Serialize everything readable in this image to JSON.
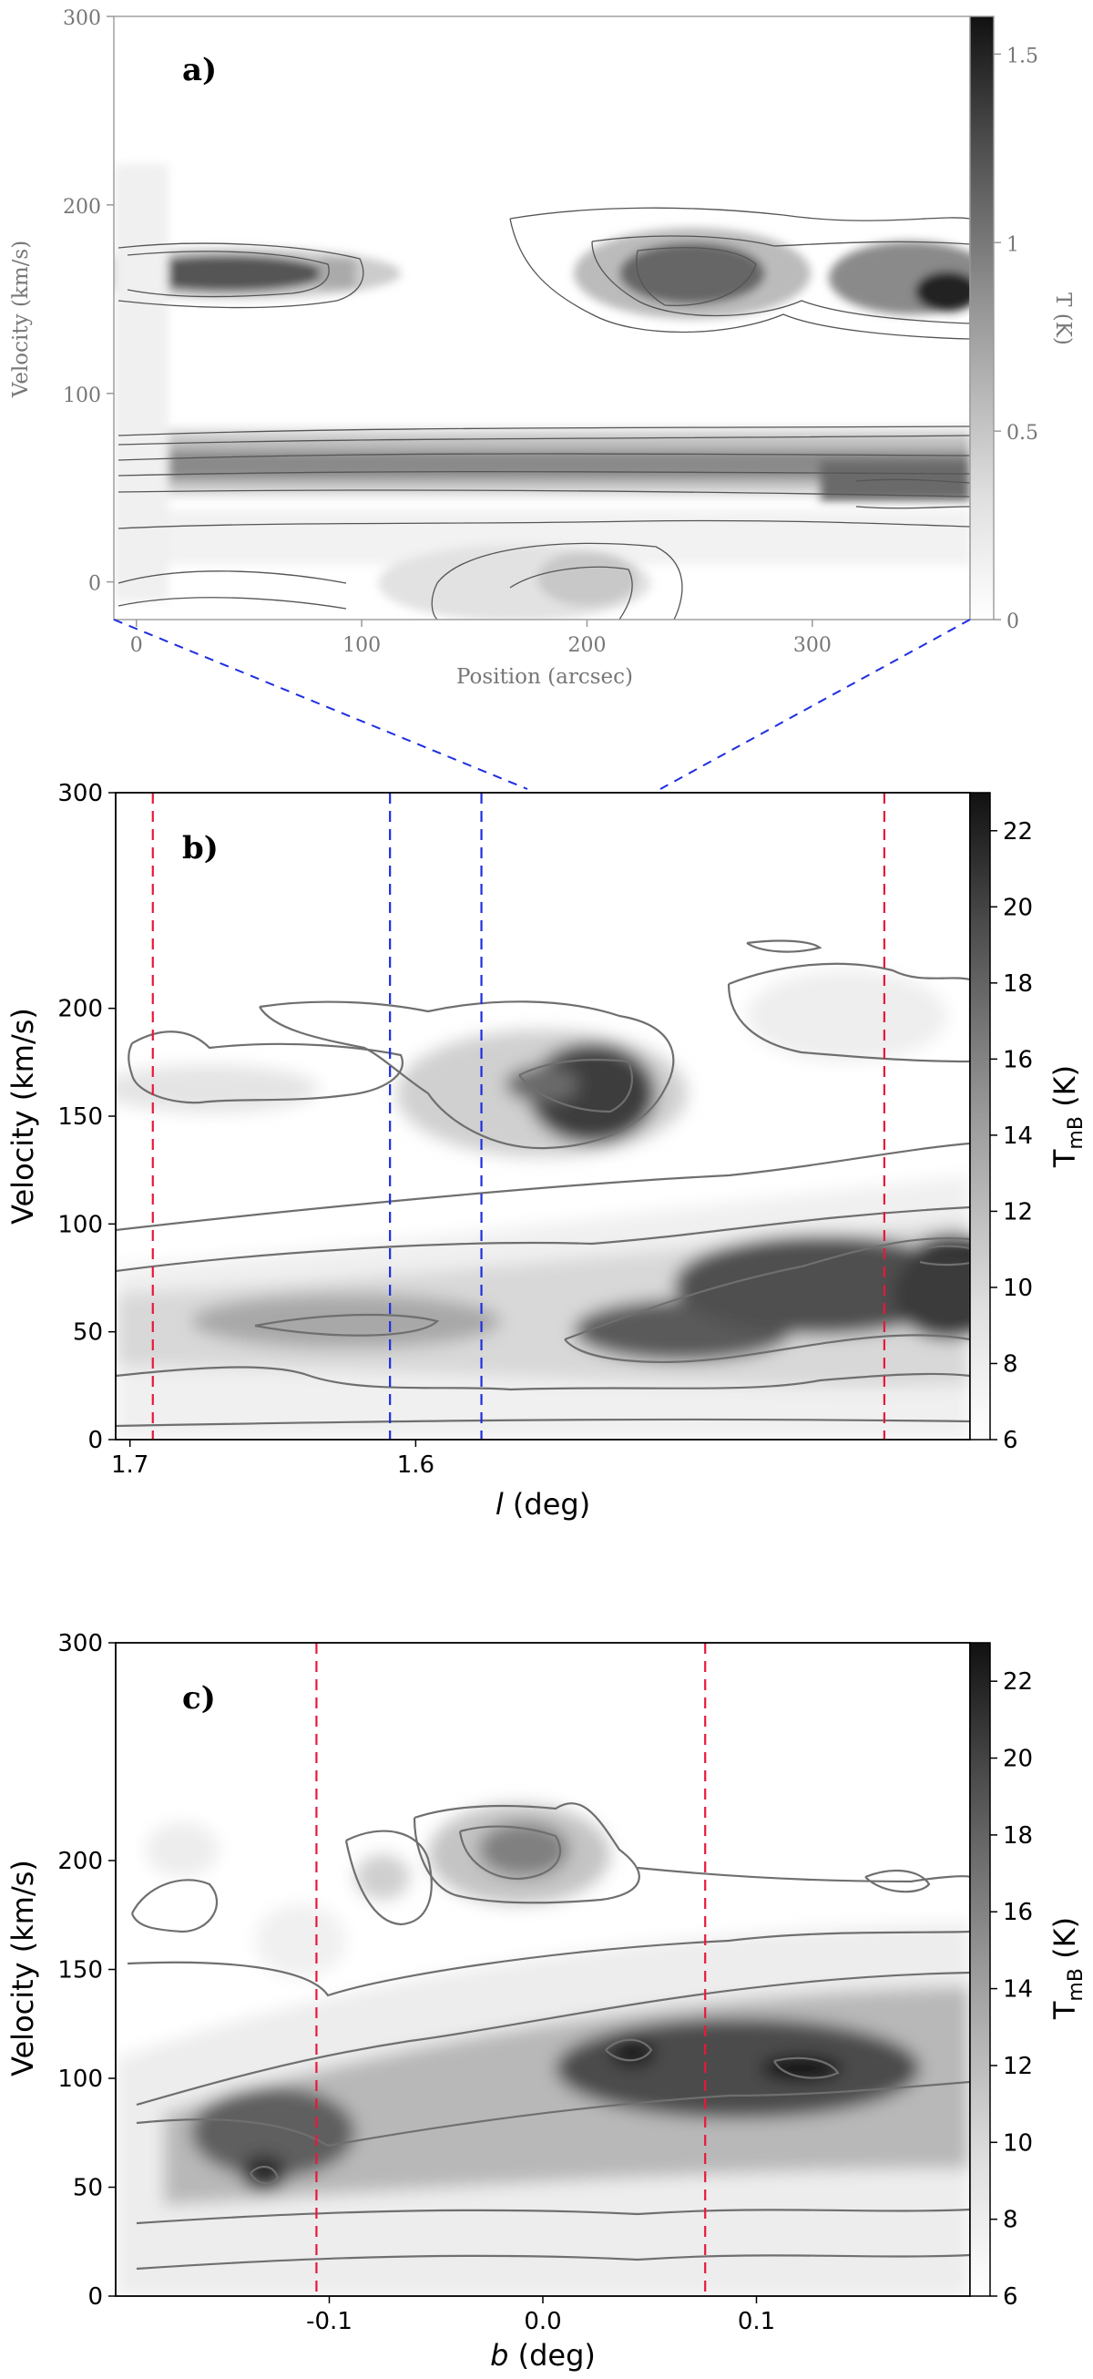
{
  "chart_data": [
    {
      "type": "heatmap",
      "panel_label": "a)",
      "xlabel": "Position (arcsec)",
      "ylabel": "Velocity (km/s)",
      "colorbar_label": "T (K)",
      "xlim": [
        -10,
        370
      ],
      "ylim": [
        -20,
        300
      ],
      "x_ticks": [
        0,
        100,
        200,
        300
      ],
      "y_ticks": [
        0,
        100,
        200,
        300
      ],
      "colorbar_range": [
        0,
        1.6
      ],
      "colorbar_ticks": [
        "0",
        "0.5",
        "1",
        "1.5"
      ],
      "features": [
        {
          "x_center": 45,
          "velocity": 160,
          "x_width": 55,
          "v_width": 20,
          "peak": 1.4
        },
        {
          "x_center": 245,
          "velocity": 160,
          "x_width": 50,
          "v_width": 30,
          "peak": 1.2
        },
        {
          "x_center": 350,
          "velocity": 155,
          "x_width": 40,
          "v_width": 25,
          "peak": 1.5
        },
        {
          "x_center": 180,
          "velocity": 55,
          "x_width": 250,
          "v_width": 12,
          "peak": 0.9
        },
        {
          "x_center": 210,
          "velocity": 10,
          "x_width": 60,
          "v_width": 20,
          "peak": 0.6
        }
      ]
    },
    {
      "type": "heatmap",
      "panel_label": "b)",
      "xlabel": "l (deg)",
      "ylabel": "Velocity (km/s)",
      "colorbar_label": "T_mB (K)",
      "xlim": [
        1.705,
        1.406
      ],
      "ylim": [
        0,
        300
      ],
      "x_ticks": [
        "1.7",
        "1.6"
      ],
      "y_ticks": [
        0,
        50,
        100,
        150,
        200,
        300
      ],
      "colorbar_range": [
        6,
        23
      ],
      "colorbar_ticks": [
        6,
        8,
        10,
        12,
        14,
        16,
        18,
        20,
        22
      ],
      "vertical_lines": [
        {
          "color": "#e8183a",
          "l": 1.692
        },
        {
          "color": "#1d2ee0",
          "l": 1.609
        },
        {
          "color": "#1d2ee0",
          "l": 1.577
        },
        {
          "color": "#e8183a",
          "l": 1.436
        }
      ],
      "features": [
        {
          "l": 1.58,
          "velocity": 150,
          "l_width": 0.012,
          "v_width": 18,
          "peak": 19
        },
        {
          "l": 1.605,
          "velocity": 165,
          "l_width": 0.012,
          "v_width": 15,
          "peak": 17
        },
        {
          "l": 1.43,
          "velocity": 88,
          "l_width": 0.03,
          "v_width": 14,
          "peak": 22
        },
        {
          "l": 1.5,
          "velocity": 70,
          "l_width": 0.08,
          "v_width": 20,
          "peak": 17
        },
        {
          "l": 1.58,
          "velocity": 45,
          "l_width": 0.04,
          "v_width": 12,
          "peak": 18
        }
      ]
    },
    {
      "type": "heatmap",
      "panel_label": "c)",
      "xlabel": "b (deg)",
      "ylabel": "Velocity (km/s)",
      "colorbar_label": "T_mB (K)",
      "xlim": [
        -0.2,
        0.2
      ],
      "ylim": [
        0,
        300
      ],
      "x_ticks": [
        "-0.1",
        "0.0",
        "0.1"
      ],
      "y_ticks": [
        0,
        50,
        100,
        150,
        200,
        300
      ],
      "colorbar_range": [
        6,
        23
      ],
      "colorbar_ticks": [
        6,
        8,
        10,
        12,
        14,
        16,
        18,
        20,
        22
      ],
      "vertical_lines": [
        {
          "color": "#e8183a",
          "b": -0.106
        },
        {
          "color": "#e8183a",
          "b": 0.076
        }
      ],
      "features": [
        {
          "b": -0.13,
          "velocity": 45,
          "b_width": 0.012,
          "v_width": 10,
          "peak": 19
        },
        {
          "b": 0.05,
          "velocity": 92,
          "b_width": 0.008,
          "v_width": 6,
          "peak": 22
        },
        {
          "b": 0.13,
          "velocity": 88,
          "b_width": 0.02,
          "v_width": 6,
          "peak": 22
        },
        {
          "b": 0.0,
          "velocity": 170,
          "b_width": 0.025,
          "v_width": 12,
          "peak": 16
        },
        {
          "b": 0.1,
          "velocity": 90,
          "b_width": 0.06,
          "v_width": 20,
          "peak": 17
        }
      ]
    }
  ]
}
